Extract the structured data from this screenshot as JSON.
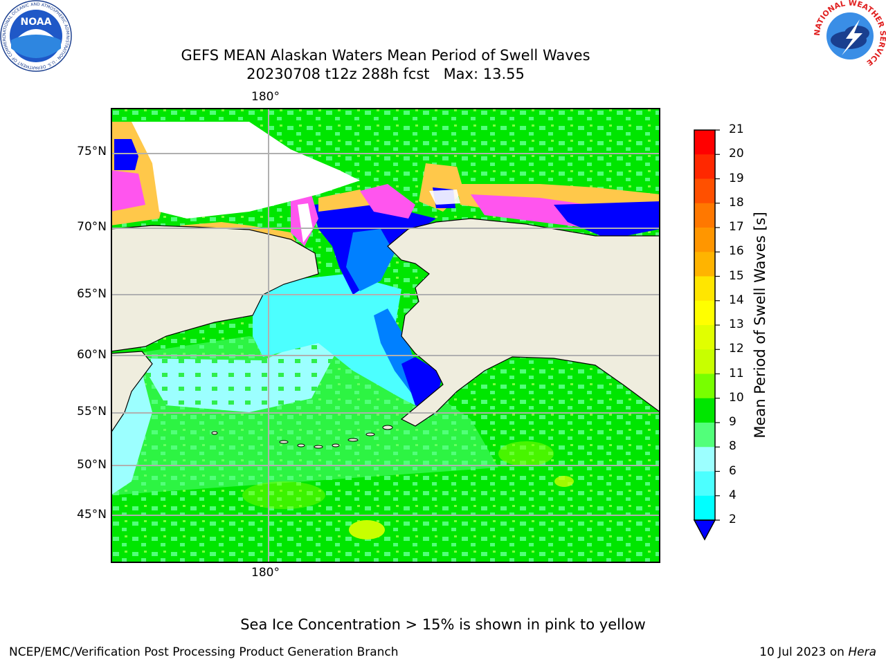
{
  "header": {
    "title_line1": "GEFS MEAN Alaskan Waters Mean Period of Swell Waves",
    "title_line2": "20230708 t12z 288h fcst   Max: 13.55"
  },
  "logos": {
    "left": "NOAA",
    "left_ring_text": "NATIONAL OCEANIC AND ATMOSPHERIC ADMINISTRATION · U.S. DEPARTMENT OF COMMERCE ·",
    "right_ring_text": "NATIONAL WEATHER SERVICE"
  },
  "map": {
    "lon_label_top": "180°",
    "lon_label_bottom": "180°",
    "lat_labels": [
      "75°N",
      "70°N",
      "65°N",
      "60°N",
      "55°N",
      "50°N",
      "45°N"
    ],
    "colors": {
      "land": "#efedde",
      "ice_white": "#ffffff",
      "ice_pink": "#ff55ee",
      "ice_magenta": "#ff99dd",
      "ice_orange": "#ffc84a",
      "ice_yellow": "#ffe066"
    }
  },
  "colorbar": {
    "title": "Mean Period of Swell Waves [s]",
    "labels": [
      "21",
      "20",
      "19",
      "18",
      "17",
      "16",
      "15",
      "14",
      "13",
      "12",
      "11",
      "10",
      "9",
      "8",
      "6",
      "4",
      "2"
    ],
    "colors": [
      "#ff0000",
      "#ff2800",
      "#ff5000",
      "#ff7800",
      "#ff9600",
      "#ffb400",
      "#ffe600",
      "#ffff00",
      "#e1ff00",
      "#c8ff00",
      "#78ff00",
      "#00e600",
      "#52ff7a",
      "#9cffff",
      "#4cffff",
      "#00ffff",
      "#0080ff"
    ],
    "extend_color": "#0000ff"
  },
  "note": "Sea Ice Concentration > 15% is shown in pink to yellow",
  "footer": {
    "left": "NCEP/EMC/Verification Post Processing Product Generation Branch",
    "right_date": "10 Jul 2023 on",
    "right_machine": "Hera"
  }
}
